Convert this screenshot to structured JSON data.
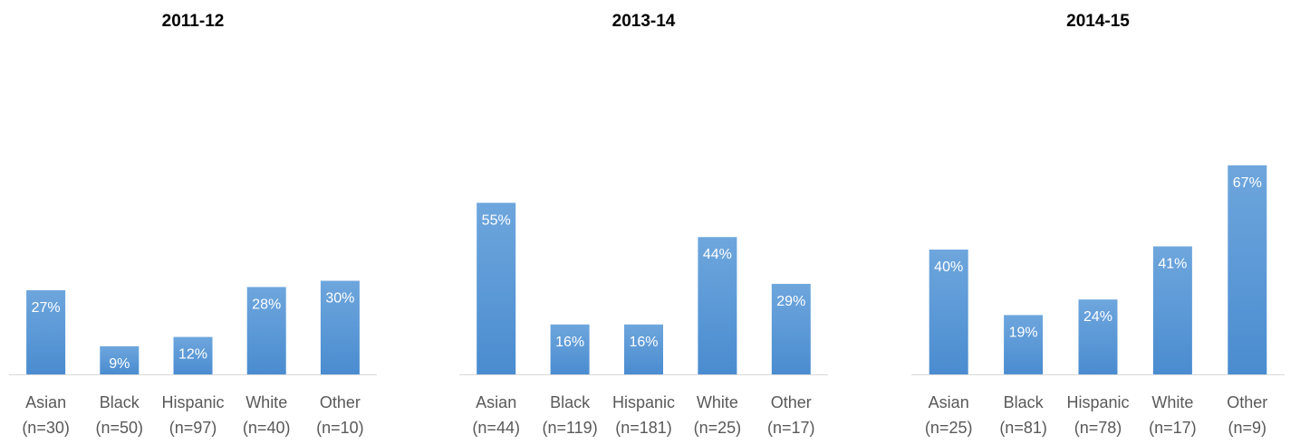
{
  "chart_data": [
    {
      "type": "bar",
      "title": "2011-12",
      "categories": [
        "Asian",
        "Black",
        "Hispanic",
        "White",
        "Other"
      ],
      "sublabels": [
        "(n=30)",
        "(n=50)",
        "(n=97)",
        "(n=40)",
        "(n=10)"
      ],
      "values": [
        27,
        9,
        12,
        28,
        30
      ],
      "data_labels": [
        "27%",
        "9%",
        "12%",
        "28%",
        "30%"
      ],
      "ylim": [
        0,
        80
      ],
      "grid": false,
      "legend": "none",
      "colors": {
        "bar_top": "#6EA6DD",
        "bar_bottom": "#4A8CD0",
        "axis": "#D9D9D9",
        "text": "#595959",
        "label": "#FFFFFF",
        "title": "#000000"
      }
    },
    {
      "type": "bar",
      "title": "2013-14",
      "categories": [
        "Asian",
        "Black",
        "Hispanic",
        "White",
        "Other"
      ],
      "sublabels": [
        "(n=44)",
        "(n=119)",
        "(n=181)",
        "(n=25)",
        "(n=17)"
      ],
      "values": [
        55,
        16,
        16,
        44,
        29
      ],
      "data_labels": [
        "55%",
        "16%",
        "16%",
        "44%",
        "29%"
      ],
      "ylim": [
        0,
        80
      ],
      "grid": false,
      "legend": "none",
      "colors": {
        "bar_top": "#6EA6DD",
        "bar_bottom": "#4A8CD0",
        "axis": "#D9D9D9",
        "text": "#595959",
        "label": "#FFFFFF",
        "title": "#000000"
      }
    },
    {
      "type": "bar",
      "title": "2014-15",
      "categories": [
        "Asian",
        "Black",
        "Hispanic",
        "White",
        "Other"
      ],
      "sublabels": [
        "(n=25)",
        "(n=81)",
        "(n=78)",
        "(n=17)",
        "(n=9)"
      ],
      "values": [
        40,
        19,
        24,
        41,
        67
      ],
      "data_labels": [
        "40%",
        "19%",
        "24%",
        "41%",
        "67%"
      ],
      "ylim": [
        0,
        80
      ],
      "grid": false,
      "legend": "none",
      "colors": {
        "bar_top": "#6EA6DD",
        "bar_bottom": "#4A8CD0",
        "axis": "#D9D9D9",
        "text": "#595959",
        "label": "#FFFFFF",
        "title": "#000000"
      }
    }
  ]
}
